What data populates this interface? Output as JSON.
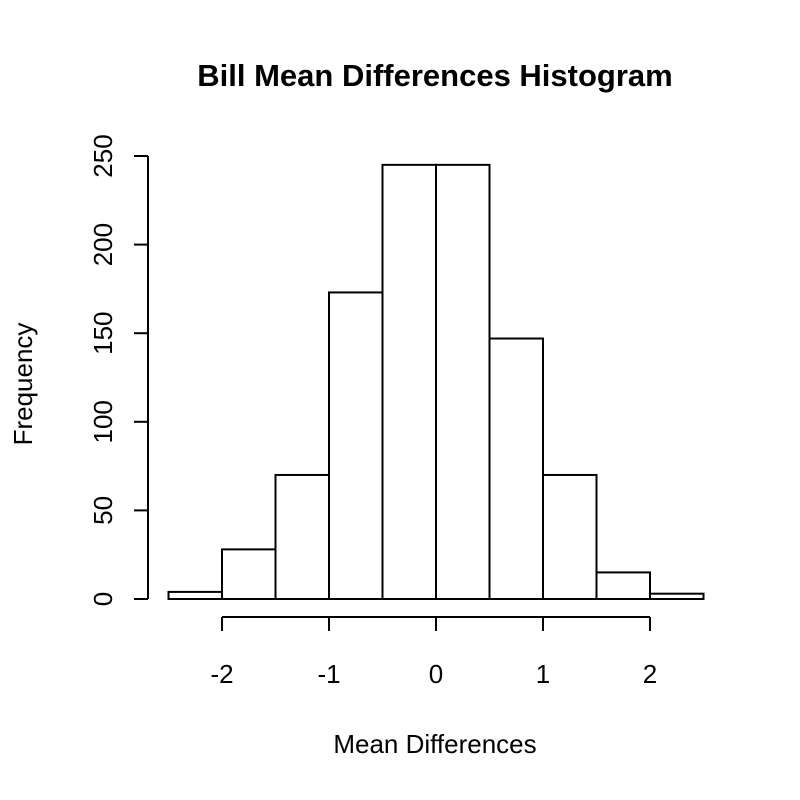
{
  "chart_data": {
    "type": "bar",
    "title": "Bill Mean Differences Histogram",
    "xlabel": "Mean Differences",
    "ylabel": "Frequency",
    "bins": [
      {
        "start": -2.5,
        "end": -2.0,
        "count": 4
      },
      {
        "start": -2.0,
        "end": -1.5,
        "count": 28
      },
      {
        "start": -1.5,
        "end": -1.0,
        "count": 70
      },
      {
        "start": -1.0,
        "end": -0.5,
        "count": 173
      },
      {
        "start": -0.5,
        "end": 0.0,
        "count": 245
      },
      {
        "start": 0.0,
        "end": 0.5,
        "count": 245
      },
      {
        "start": 0.5,
        "end": 1.0,
        "count": 147
      },
      {
        "start": 1.0,
        "end": 1.5,
        "count": 70
      },
      {
        "start": 1.5,
        "end": 2.0,
        "count": 15
      },
      {
        "start": 2.0,
        "end": 2.5,
        "count": 3
      }
    ],
    "xticks": [
      -2,
      -1,
      0,
      1,
      2
    ],
    "xtick_labels": [
      "-2",
      "-1",
      "0",
      "1",
      "2"
    ],
    "yticks": [
      0,
      50,
      100,
      150,
      200,
      250
    ],
    "ytick_labels": [
      "0",
      "50",
      "100",
      "150",
      "200",
      "250"
    ],
    "xlim": [
      -2.6,
      2.6
    ],
    "ylim": [
      0,
      250
    ],
    "grid": false,
    "legend": "none"
  }
}
